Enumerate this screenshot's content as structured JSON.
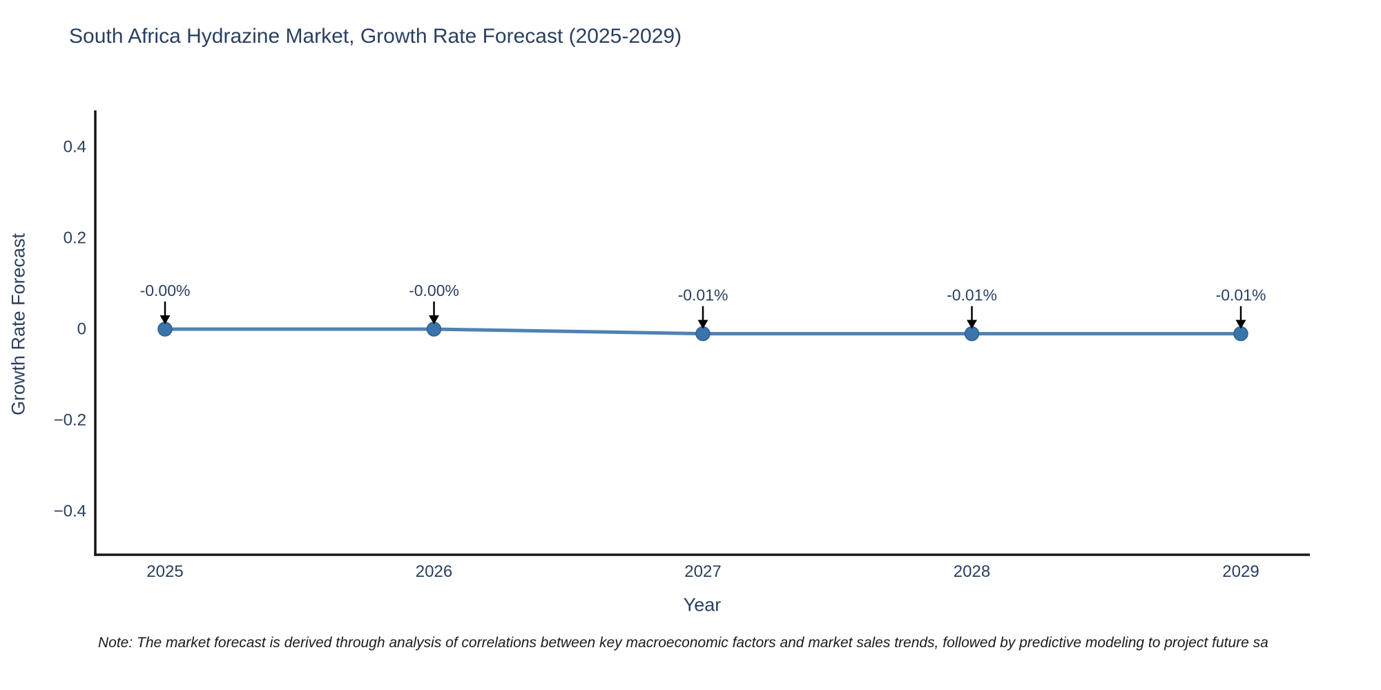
{
  "title": "South Africa Hydrazine Market, Growth Rate Forecast (2025-2029)",
  "footnote": "Note: The market forecast is derived through analysis of correlations between key macroeconomic factors and market sales trends, followed by predictive modeling to project future sa",
  "chart_data": {
    "type": "line",
    "title": "South Africa Hydrazine Market, Growth Rate Forecast (2025-2029)",
    "xlabel": "Year",
    "ylabel": "Growth Rate Forecast",
    "x": [
      2025,
      2026,
      2027,
      2028,
      2029
    ],
    "y": [
      -0.0,
      -0.0,
      -0.01,
      -0.01,
      -0.01
    ],
    "point_labels": [
      "-0.00%",
      "-0.00%",
      "-0.01%",
      "-0.01%",
      "-0.01%"
    ],
    "xtick_labels": [
      "2025",
      "2026",
      "2027",
      "2028",
      "2029"
    ],
    "ytick_values": [
      0.4,
      0.2,
      0,
      -0.2,
      -0.4
    ],
    "ytick_labels": [
      "0.4",
      "0.2",
      "0",
      "−0.2",
      "−0.4"
    ],
    "ylim": [
      -0.5,
      0.48
    ],
    "grid": false,
    "legend_position": "none",
    "colors": {
      "line": "#4f81b3",
      "marker_fill": "#3a74ab",
      "marker_stroke": "#2d5f91",
      "axis_line": "#161616",
      "text": "#2a3f5f",
      "annotation_arrow": "#000000"
    }
  }
}
